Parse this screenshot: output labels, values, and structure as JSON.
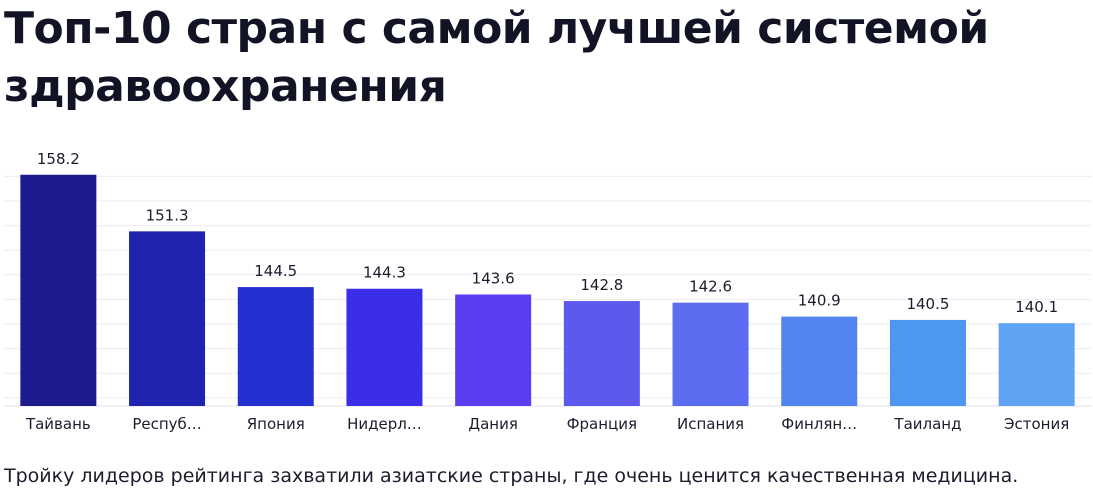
{
  "title": "Топ-10 стран с самой лучшей системой здравоохранения",
  "caption": "Тройку лидеров рейтинга захватили азиатские страны, где очень ценится качественная медицина.",
  "chart_data": {
    "type": "bar",
    "title": "Топ-10 стран с самой лучшей системой здравоохранения",
    "xlabel": "",
    "ylabel": "",
    "ylim": [
      130,
      160
    ],
    "grid": true,
    "categories": [
      "Тайвань",
      "Респуб…",
      "Япония",
      "Нидерл…",
      "Дания",
      "Франция",
      "Испания",
      "Финлян…",
      "Таиланд",
      "Эстония"
    ],
    "values": [
      158.2,
      151.3,
      144.5,
      144.3,
      143.6,
      142.8,
      142.6,
      140.9,
      140.5,
      140.1
    ],
    "value_labels": [
      "158.2",
      "151.3",
      "144.5",
      "144.3",
      "143.6",
      "142.8",
      "142.6",
      "140.9",
      "140.5",
      "140.1"
    ],
    "colors": [
      "#1e1b8f",
      "#2023b0",
      "#2430cf",
      "#3a2ee8",
      "#5a3ff0",
      "#5d59ee",
      "#5a6cf0",
      "#5283ee",
      "#4d96f2",
      "#5fa3f4"
    ]
  }
}
